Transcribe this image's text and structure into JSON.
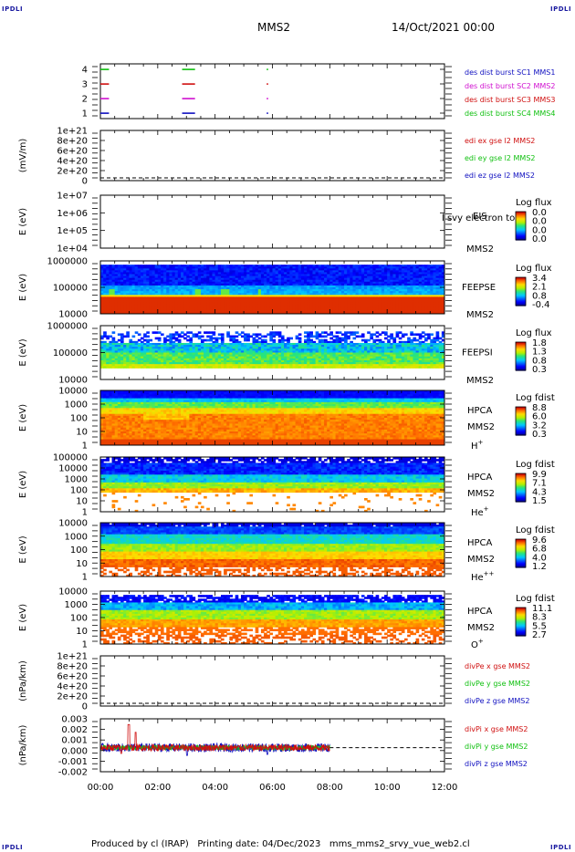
{
  "header": {
    "corner_label": "IPDLI",
    "spacecraft": "MMS2",
    "datetime": "14/Oct/2021 00:00"
  },
  "footer": {
    "text": "Produced by cl (IRAP)   Printing date: 04/Dec/2023   mms_mms2_srvy_vue_web2.cl"
  },
  "time_axis": {
    "ticks": [
      "00:00",
      "02:00",
      "04:00",
      "06:00",
      "08:00",
      "10:00",
      "12:00"
    ],
    "range_hours": [
      0,
      12
    ]
  },
  "colors": {
    "blue": "#1010c0",
    "magenta": "#d010d0",
    "red": "#d01010",
    "green": "#10c010",
    "frame": "#000000"
  },
  "panels": [
    {
      "id": "burst",
      "ylabel": "",
      "yticks": [
        "4",
        "3",
        "2",
        "1"
      ],
      "legend": [
        {
          "text": "des dist burst SC1 MMS1",
          "color": "#1010c0"
        },
        {
          "text": "des dist burst SC2 MMS2",
          "color": "#d010d0"
        },
        {
          "text": "des dist burst SC3 MMS3",
          "color": "#d01010"
        },
        {
          "text": "des dist burst SC4 MMS4",
          "color": "#10c010"
        }
      ]
    },
    {
      "id": "edi",
      "ylabel": "(mV/m)",
      "yticks": [
        "1e+21",
        "8e+20",
        "6e+20",
        "4e+20",
        "2e+20",
        "0"
      ],
      "legend": [
        {
          "text": "edi ex gse l2 MMS2",
          "color": "#d01010"
        },
        {
          "text": "edi ey gse l2 MMS2",
          "color": "#10c010"
        },
        {
          "text": "edi ez gse l2 MMS2",
          "color": "#1010c0"
        }
      ]
    },
    {
      "id": "eis",
      "ylabel": "E (eV)",
      "yticks": [
        "1e+07",
        "1e+06",
        "1e+05",
        "1e+04"
      ],
      "labels": [
        "EIS",
        "MMS2"
      ],
      "overlay": "l svy electron to",
      "cbar_title": "Log flux",
      "cbar_ticks": [
        "0.0",
        "0.0",
        "0.0",
        "0.0"
      ]
    },
    {
      "id": "feepse",
      "ylabel": "E (eV)",
      "yticks": [
        "1000000",
        "100000",
        "10000"
      ],
      "labels": [
        "FEEPSE",
        "MMS2"
      ],
      "cbar_title": "Log flux",
      "cbar_ticks": [
        "3.4",
        "2.1",
        "0.8",
        "-0.4"
      ]
    },
    {
      "id": "feepsi",
      "ylabel": "E (eV)",
      "yticks": [
        "1000000",
        "100000",
        "10000"
      ],
      "labels": [
        "FEEPSI",
        "MMS2"
      ],
      "cbar_title": "Log flux",
      "cbar_ticks": [
        "1.8",
        "1.3",
        "0.8",
        "0.3"
      ]
    },
    {
      "id": "hpca_h",
      "ylabel": "E (eV)",
      "yticks": [
        "10000",
        "1000",
        "100",
        "10",
        "1"
      ],
      "labels": [
        "HPCA",
        "MMS2"
      ],
      "species": "H",
      "species_sup": "+",
      "cbar_title": "Log fdist",
      "cbar_ticks": [
        "8.8",
        "6.0",
        "3.2",
        "0.3"
      ]
    },
    {
      "id": "hpca_he1",
      "ylabel": "E (eV)",
      "yticks": [
        "100000",
        "10000",
        "1000",
        "100",
        "10",
        "1"
      ],
      "labels": [
        "HPCA",
        "MMS2"
      ],
      "species": "He",
      "species_sup": "+",
      "cbar_title": "Log fdist",
      "cbar_ticks": [
        "9.9",
        "7.1",
        "4.3",
        "1.5"
      ]
    },
    {
      "id": "hpca_he2",
      "ylabel": "E (eV)",
      "yticks": [
        "10000",
        "1000",
        "100",
        "10",
        "1"
      ],
      "labels": [
        "HPCA",
        "MMS2"
      ],
      "species": "He",
      "species_sup": "++",
      "cbar_title": "Log fdist",
      "cbar_ticks": [
        "9.6",
        "6.8",
        "4.0",
        "1.2"
      ]
    },
    {
      "id": "hpca_o",
      "ylabel": "E (eV)",
      "yticks": [
        "10000",
        "1000",
        "100",
        "10",
        "1"
      ],
      "labels": [
        "HPCA",
        "MMS2"
      ],
      "species": "O",
      "species_sup": "+",
      "cbar_title": "Log fdist",
      "cbar_ticks": [
        "11.1",
        "8.3",
        "5.5",
        "2.7"
      ]
    },
    {
      "id": "divpe",
      "ylabel": "(nPa/km)",
      "yticks": [
        "1e+21",
        "8e+20",
        "6e+20",
        "4e+20",
        "2e+20",
        "0"
      ],
      "legend": [
        {
          "text": "divPe x gse MMS2",
          "color": "#d01010"
        },
        {
          "text": "divPe y gse MMS2",
          "color": "#10c010"
        },
        {
          "text": "divPe z gse MMS2",
          "color": "#1010c0"
        }
      ]
    },
    {
      "id": "divpi",
      "ylabel": "(nPa/km)",
      "yticks": [
        "0.003",
        "0.002",
        "0.001",
        "0.000",
        "-0.001",
        "-0.002"
      ],
      "legend": [
        {
          "text": "divPi x gse MMS2",
          "color": "#d01010"
        },
        {
          "text": "divPi y gse MMS2",
          "color": "#10c010"
        },
        {
          "text": "divPi z gse MMS2",
          "color": "#1010c0"
        }
      ]
    }
  ],
  "chart_data": [
    {
      "type": "scatter",
      "title": "des dist burst",
      "ylabel": "",
      "x_unit": "hours",
      "series": [
        {
          "name": "des dist burst SC1 MMS1",
          "y": 1,
          "intervals": [
            [
              0.0,
              0.3
            ],
            [
              2.85,
              3.3
            ],
            [
              5.8,
              5.85
            ]
          ]
        },
        {
          "name": "des dist burst SC2 MMS2",
          "y": 2,
          "intervals": [
            [
              0.0,
              0.3
            ],
            [
              2.85,
              3.3
            ],
            [
              5.8,
              5.85
            ]
          ]
        },
        {
          "name": "des dist burst SC3 MMS3",
          "y": 3,
          "intervals": [
            [
              0.0,
              0.3
            ],
            [
              2.85,
              3.3
            ],
            [
              5.8,
              5.85
            ]
          ]
        },
        {
          "name": "des dist burst SC4 MMS4",
          "y": 4,
          "intervals": [
            [
              0.0,
              0.3
            ],
            [
              2.85,
              3.3
            ],
            [
              5.8,
              5.85
            ]
          ]
        }
      ]
    },
    {
      "type": "line",
      "ylabel": "(mV/m)",
      "series": [],
      "reference_line": 0
    },
    {
      "type": "heatmap",
      "ylabel": "E (eV)",
      "data_range_hours": [
        0,
        12
      ],
      "populated": false
    },
    {
      "type": "heatmap",
      "ylabel": "E (eV)",
      "data_range_hours": [
        0,
        12
      ]
    },
    {
      "type": "heatmap",
      "ylabel": "E (eV)",
      "data_range_hours": [
        0,
        12
      ]
    },
    {
      "type": "heatmap",
      "ylabel": "E (eV)",
      "data_range_hours": [
        0,
        12
      ]
    },
    {
      "type": "heatmap",
      "ylabel": "E (eV)",
      "data_range_hours": [
        0,
        12
      ]
    },
    {
      "type": "heatmap",
      "ylabel": "E (eV)",
      "data_range_hours": [
        0,
        12
      ]
    },
    {
      "type": "heatmap",
      "ylabel": "E (eV)",
      "data_range_hours": [
        0,
        12
      ]
    },
    {
      "type": "line",
      "ylabel": "(nPa/km)",
      "series": [],
      "reference_line": 0
    },
    {
      "type": "line",
      "ylabel": "(nPa/km)",
      "ylim": [
        -0.0025,
        0.003
      ],
      "data_range_hours": [
        0,
        8
      ],
      "series": [
        {
          "name": "divPi x gse MMS2",
          "approx_range": [
            -0.0005,
            0.0025
          ]
        },
        {
          "name": "divPi y gse MMS2",
          "approx_range": [
            -0.0004,
            0.0004
          ]
        },
        {
          "name": "divPi z gse MMS2",
          "approx_range": [
            -0.0007,
            0.0007
          ]
        }
      ]
    }
  ]
}
